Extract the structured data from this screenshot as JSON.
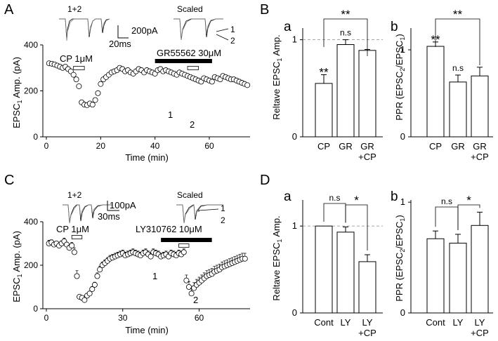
{
  "panels": {
    "A": {
      "letter": "A",
      "trace_left_label": "1+2",
      "trace_right_label": "Scaled",
      "scalebar_y": "200pA",
      "scalebar_x": "20ms",
      "trace1_label": "1",
      "trace2_label": "2",
      "ylabel_pre": "EPSC",
      "ylabel_sub": "1",
      "ylabel_post": " Amp. (pA)",
      "xlabel": "Time (min)",
      "drug1": "CP 1μM",
      "drug2": "GR55562 30μM",
      "mark1": "1",
      "mark2": "2"
    },
    "C": {
      "letter": "C",
      "trace_left_label": "1+2",
      "trace_right_label": "Scaled",
      "scalebar_y": "100pA",
      "scalebar_x": "30ms",
      "trace1_label": "1",
      "trace2_label": "2",
      "ylabel_pre": "EPSC",
      "ylabel_sub": "1",
      "ylabel_post": " Amp. (pA)",
      "xlabel": "Time (min)",
      "drug1": "CP 1μM",
      "drug2": "LY310762 10μM",
      "mark1": "1",
      "mark2": "2"
    },
    "B": {
      "letter": "B",
      "sub_a": "a",
      "sub_b": "b",
      "a_ylabel_pre": "Reltave EPSC",
      "a_ylabel_sub": "1",
      "a_ylabel_post": " Amp.",
      "b_ylabel_pre": "PPR (EPSC",
      "b_ylabel_sub1": "2",
      "b_ylabel_mid": "/EPSC",
      "b_ylabel_sub2": "1",
      "b_ylabel_post": ")"
    },
    "D": {
      "letter": "D",
      "sub_a": "a",
      "sub_b": "b",
      "a_ylabel_pre": "Reltave EPSC",
      "a_ylabel_sub": "1",
      "a_ylabel_post": " Amp.",
      "b_ylabel_pre": "PPR (EPSC",
      "b_ylabel_sub1": "2",
      "b_ylabel_mid": "/EPSC",
      "b_ylabel_sub2": "1",
      "b_ylabel_post": ")"
    }
  },
  "chart_data": [
    {
      "id": "A",
      "type": "scatter",
      "xlim": [
        0,
        75
      ],
      "ylim": [
        0,
        400
      ],
      "xticks": [
        "0",
        "20",
        "40",
        "60"
      ],
      "yticks": [
        "0",
        "200",
        "400"
      ],
      "drug_bars": [
        {
          "label": "CP 1μM",
          "start": 10,
          "end": 14,
          "style": "open"
        },
        {
          "label": "GR55562 30μM",
          "start": 40,
          "end": 61,
          "style": "filled"
        },
        {
          "label": "",
          "start": 52,
          "end": 56,
          "style": "open"
        }
      ],
      "x": [
        1,
        2,
        3,
        4,
        5,
        6,
        7,
        8,
        9,
        10,
        11,
        12,
        13,
        14,
        15,
        16,
        17,
        18,
        19,
        20,
        21,
        22,
        23,
        24,
        25,
        26,
        27,
        28,
        29,
        30,
        31,
        32,
        33,
        34,
        35,
        36,
        37,
        38,
        39,
        40,
        41,
        42,
        43,
        44,
        45,
        46,
        47,
        48,
        49,
        50,
        51,
        52,
        53,
        54,
        55,
        56,
        57,
        58,
        59,
        60,
        61,
        62,
        63,
        64,
        65,
        66,
        67,
        68,
        69,
        70,
        71,
        72,
        73,
        74
      ],
      "y": [
        320,
        318,
        315,
        310,
        305,
        300,
        305,
        295,
        285,
        270,
        250,
        220,
        150,
        140,
        138,
        145,
        140,
        160,
        190,
        230,
        250,
        260,
        270,
        280,
        285,
        290,
        300,
        295,
        285,
        290,
        280,
        275,
        285,
        295,
        290,
        280,
        290,
        285,
        280,
        275,
        290,
        295,
        285,
        290,
        285,
        280,
        275,
        270,
        280,
        275,
        270,
        265,
        260,
        255,
        250,
        245,
        240,
        255,
        250,
        245,
        240,
        260,
        255,
        250,
        265,
        260,
        255,
        250,
        250,
        245,
        240,
        235,
        230,
        225
      ]
    },
    {
      "id": "C",
      "type": "scatter",
      "xlim": [
        0,
        80
      ],
      "ylim": [
        0,
        400
      ],
      "xticks": [
        "0",
        "30",
        "60"
      ],
      "yticks": [
        "0",
        "200",
        "400"
      ],
      "drug_bars": [
        {
          "label": "CP 1μM",
          "start": 10,
          "end": 14,
          "style": "open"
        },
        {
          "label": "LY310762 10μM",
          "start": 45,
          "end": 65,
          "style": "filled"
        },
        {
          "label": "",
          "start": 52,
          "end": 56,
          "style": "open"
        }
      ],
      "x": [
        1,
        2,
        3,
        4,
        5,
        6,
        7,
        8,
        9,
        10,
        11,
        12,
        13,
        14,
        15,
        16,
        17,
        18,
        19,
        20,
        21,
        22,
        23,
        24,
        25,
        26,
        27,
        28,
        29,
        30,
        31,
        32,
        33,
        34,
        35,
        36,
        37,
        38,
        39,
        40,
        41,
        42,
        43,
        44,
        45,
        46,
        47,
        48,
        49,
        50,
        51,
        52,
        53,
        54,
        55,
        56,
        57,
        58,
        59,
        60,
        61,
        62,
        63,
        64,
        65,
        66,
        67,
        68,
        69,
        70,
        71,
        72,
        73,
        74,
        75,
        76,
        77,
        78
      ],
      "y": [
        300,
        305,
        295,
        300,
        290,
        300,
        310,
        295,
        280,
        290,
        260,
        150,
        55,
        50,
        40,
        60,
        70,
        90,
        110,
        150,
        180,
        200,
        210,
        220,
        230,
        235,
        240,
        245,
        250,
        255,
        245,
        250,
        255,
        260,
        255,
        250,
        245,
        255,
        260,
        250,
        240,
        260,
        255,
        250,
        240,
        245,
        250,
        240,
        255,
        250,
        245,
        255,
        250,
        260,
        130,
        100,
        70,
        95,
        110,
        120,
        130,
        140,
        150,
        155,
        160,
        170,
        175,
        180,
        190,
        195,
        200,
        205,
        210,
        215,
        220,
        225,
        230,
        230
      ],
      "err": [
        15,
        12,
        10,
        10,
        10,
        12,
        15,
        10,
        12,
        15,
        20,
        25,
        10,
        8,
        8,
        10,
        10,
        12,
        12,
        15,
        15,
        15,
        15,
        15,
        15,
        15,
        15,
        15,
        15,
        15,
        15,
        15,
        15,
        15,
        15,
        15,
        15,
        15,
        15,
        15,
        15,
        15,
        15,
        15,
        15,
        15,
        15,
        15,
        15,
        15,
        15,
        15,
        15,
        15,
        25,
        25,
        25,
        25,
        25,
        25,
        25,
        25,
        25,
        25,
        25,
        25,
        25,
        25,
        25,
        25,
        25,
        25,
        25,
        25,
        25,
        25,
        25,
        25
      ]
    },
    {
      "id": "Ba",
      "type": "bar",
      "categories": [
        [
          "CP"
        ],
        [
          "GR"
        ],
        [
          "GR",
          "+CP"
        ]
      ],
      "values": [
        0.55,
        0.95,
        0.89
      ],
      "errors": [
        0.09,
        0.05,
        0.01
      ],
      "ylim": [
        0,
        1.12
      ],
      "yticks": [
        "0",
        "1"
      ],
      "reference_line": 1,
      "annotations": [
        {
          "text": "**",
          "on": 0
        },
        {
          "text": "n.s",
          "on": 1
        },
        {
          "text": "**",
          "bracket": [
            0,
            2
          ]
        }
      ]
    },
    {
      "id": "Bb",
      "type": "bar",
      "categories": [
        [
          "CP"
        ],
        [
          "GR"
        ],
        [
          "GR",
          "+CP"
        ]
      ],
      "values": [
        1.04,
        0.63,
        0.7
      ],
      "errors": [
        0.05,
        0.08,
        0.1
      ],
      "ylim": [
        0,
        1.25
      ],
      "yticks": [
        "0",
        "1"
      ],
      "annotations": [
        {
          "text": "**",
          "on": 0
        },
        {
          "text": "n.s",
          "on": 1
        },
        {
          "text": "**",
          "bracket": [
            0,
            2
          ]
        }
      ]
    },
    {
      "id": "Da",
      "type": "bar",
      "categories": [
        [
          "Cont"
        ],
        [
          "LY"
        ],
        [
          "LY",
          "+CP"
        ]
      ],
      "values": [
        1.0,
        0.93,
        0.59
      ],
      "errors": [
        0,
        0.06,
        0.08
      ],
      "ylim": [
        0,
        1.3
      ],
      "yticks": [
        "0",
        "1"
      ],
      "reference_line": 1,
      "annotations": [
        {
          "text": "n.s",
          "bracket": [
            0,
            1
          ]
        },
        {
          "text": "*",
          "bracket": [
            1,
            2
          ]
        }
      ]
    },
    {
      "id": "Db",
      "type": "bar",
      "categories": [
        [
          "Cont"
        ],
        [
          "LY"
        ],
        [
          "LY",
          "+CP"
        ]
      ],
      "values": [
        0.67,
        0.63,
        0.79
      ],
      "errors": [
        0.07,
        0.08,
        0.12
      ],
      "ylim": [
        0,
        1.02
      ],
      "yticks": [
        "0",
        "1"
      ],
      "annotations": [
        {
          "text": "n.s",
          "bracket": [
            0,
            1
          ]
        },
        {
          "text": "*",
          "bracket": [
            1,
            2
          ]
        }
      ]
    }
  ]
}
